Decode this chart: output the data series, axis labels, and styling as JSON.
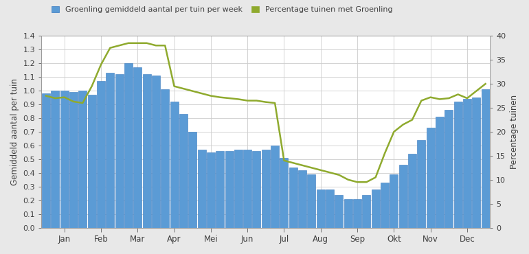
{
  "bar_values": [
    0.98,
    1.0,
    1.0,
    0.99,
    1.0,
    0.97,
    1.07,
    1.13,
    1.12,
    1.2,
    1.17,
    1.12,
    1.11,
    1.01,
    0.92,
    0.83,
    0.7,
    0.57,
    0.55,
    0.56,
    0.56,
    0.57,
    0.57,
    0.56,
    0.57,
    0.6,
    0.51,
    0.44,
    0.42,
    0.39,
    0.28,
    0.28,
    0.24,
    0.21,
    0.21,
    0.24,
    0.28,
    0.33,
    0.39,
    0.46,
    0.54,
    0.64,
    0.73,
    0.81,
    0.86,
    0.92,
    0.94,
    0.95,
    1.01
  ],
  "line_values": [
    27.5,
    27.0,
    27.2,
    26.3,
    26.0,
    29.5,
    34.0,
    37.5,
    38.0,
    38.5,
    38.5,
    38.5,
    38.0,
    38.0,
    29.5,
    29.0,
    28.5,
    28.0,
    27.5,
    27.2,
    27.0,
    26.8,
    26.5,
    26.5,
    26.2,
    26.0,
    14.0,
    13.5,
    13.0,
    12.5,
    12.0,
    11.5,
    11.0,
    10.0,
    9.5,
    9.5,
    10.5,
    15.5,
    20.0,
    21.5,
    22.5,
    26.5,
    27.2,
    26.8,
    27.0,
    27.8,
    27.0,
    28.5,
    30.0
  ],
  "month_labels": [
    "Jan",
    "Feb",
    "Mar",
    "Apr",
    "Mei",
    "Jun",
    "Jul",
    "Aug",
    "Sep",
    "Okt",
    "Nov",
    "Dec"
  ],
  "month_tick_positions": [
    2,
    6,
    10,
    14,
    18,
    22,
    26,
    30,
    34,
    38,
    42,
    46
  ],
  "bar_color": "#5b9bd5",
  "bar_edge_color": "#3a7abf",
  "line_color": "#8faa2e",
  "ylabel_left": "Gemiddeld aantal per tuin",
  "ylabel_right": "Percentage tuinen",
  "ylim_left": [
    0,
    1.4
  ],
  "ylim_right": [
    0,
    40
  ],
  "yticks_left": [
    0.0,
    0.1,
    0.2,
    0.3,
    0.4,
    0.5,
    0.6,
    0.7,
    0.8,
    0.9,
    1.0,
    1.1,
    1.2,
    1.3,
    1.4
  ],
  "yticks_right": [
    0,
    5,
    10,
    15,
    20,
    25,
    30,
    35,
    40
  ],
  "legend_label_bar": "Groenling gemiddeld aantal per tuin per week",
  "legend_label_line": "Percentage tuinen met Groenling",
  "fig_background_color": "#e8e8e8",
  "plot_background_color": "#ffffff",
  "grid_color": "#cccccc",
  "axis_label_color": "#404040",
  "tick_label_color": "#404040"
}
